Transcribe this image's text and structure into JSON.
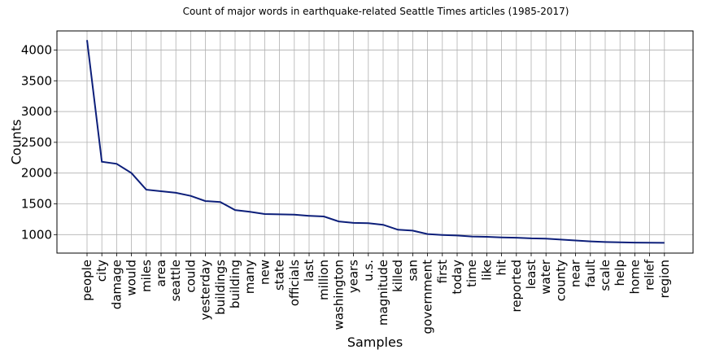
{
  "chart_data": {
    "type": "line",
    "title": "Count of major words in earthquake-related Seattle Times articles (1985-2017)",
    "xlabel": "Samples",
    "ylabel": "Counts",
    "ylim": [
      700,
      4310
    ],
    "yticks": [
      1000,
      1500,
      2000,
      2500,
      3000,
      3500,
      4000
    ],
    "grid": true,
    "line_color": "#0d1f7a",
    "categories": [
      "people",
      "city",
      "damage",
      "would",
      "miles",
      "area",
      "seattle",
      "could",
      "yesterday",
      "buildings",
      "building",
      "many",
      "new",
      "state",
      "officials",
      "last",
      "million",
      "washington",
      "years",
      "u.s.",
      "magnitude",
      "killed",
      "san",
      "government",
      "first",
      "today",
      "time",
      "like",
      "hit",
      "reported",
      "least",
      "water",
      "county",
      "near",
      "fault",
      "scale",
      "help",
      "home",
      "relief",
      "region"
    ],
    "values": [
      4160,
      2185,
      2150,
      2000,
      1730,
      1705,
      1680,
      1630,
      1545,
      1530,
      1400,
      1370,
      1335,
      1330,
      1325,
      1305,
      1295,
      1215,
      1190,
      1185,
      1160,
      1080,
      1065,
      1010,
      995,
      985,
      970,
      965,
      955,
      950,
      940,
      935,
      920,
      905,
      890,
      880,
      875,
      870,
      868,
      866
    ]
  }
}
